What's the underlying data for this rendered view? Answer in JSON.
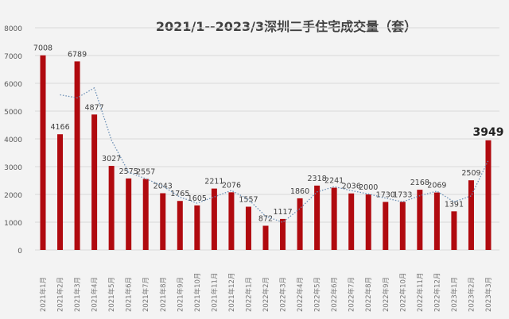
{
  "chart_data": {
    "type": "bar",
    "title": "2021/1--2023/3深圳二手住宅成交量（套）",
    "categories": [
      "2021年1月",
      "2021年2月",
      "2021年3月",
      "2021年4月",
      "2021年5月",
      "2021年6月",
      "2021年7月",
      "2021年8月",
      "2021年9月",
      "2021年10月",
      "2021年11月",
      "2021年12月",
      "2022年1月",
      "2022年2月",
      "2022年3月",
      "2022年4月",
      "2022年5月",
      "2022年6月",
      "2022年7月",
      "2022年8月",
      "2022年9月",
      "2022年10月",
      "2022年11月",
      "2022年12月",
      "2023年1月",
      "2023年2月",
      "2023年3月"
    ],
    "values": [
      7008,
      4166,
      6789,
      4877,
      3027,
      2575,
      2557,
      2043,
      1765,
      1605,
      2211,
      2076,
      1557,
      872,
      1117,
      1860,
      2318,
      2241,
      2036,
      2000,
      1730,
      1733,
      2168,
      2069,
      1391,
      2509,
      3949
    ],
    "trendline": "2-period moving average",
    "ylim": [
      0,
      8000
    ],
    "yticks": [
      0,
      1000,
      2000,
      3000,
      4000,
      5000,
      6000,
      7000,
      8000
    ],
    "grid": true,
    "bar_color": "#b00a0f",
    "trend_color": "#6b8fb5",
    "xlabel": "",
    "ylabel": ""
  }
}
